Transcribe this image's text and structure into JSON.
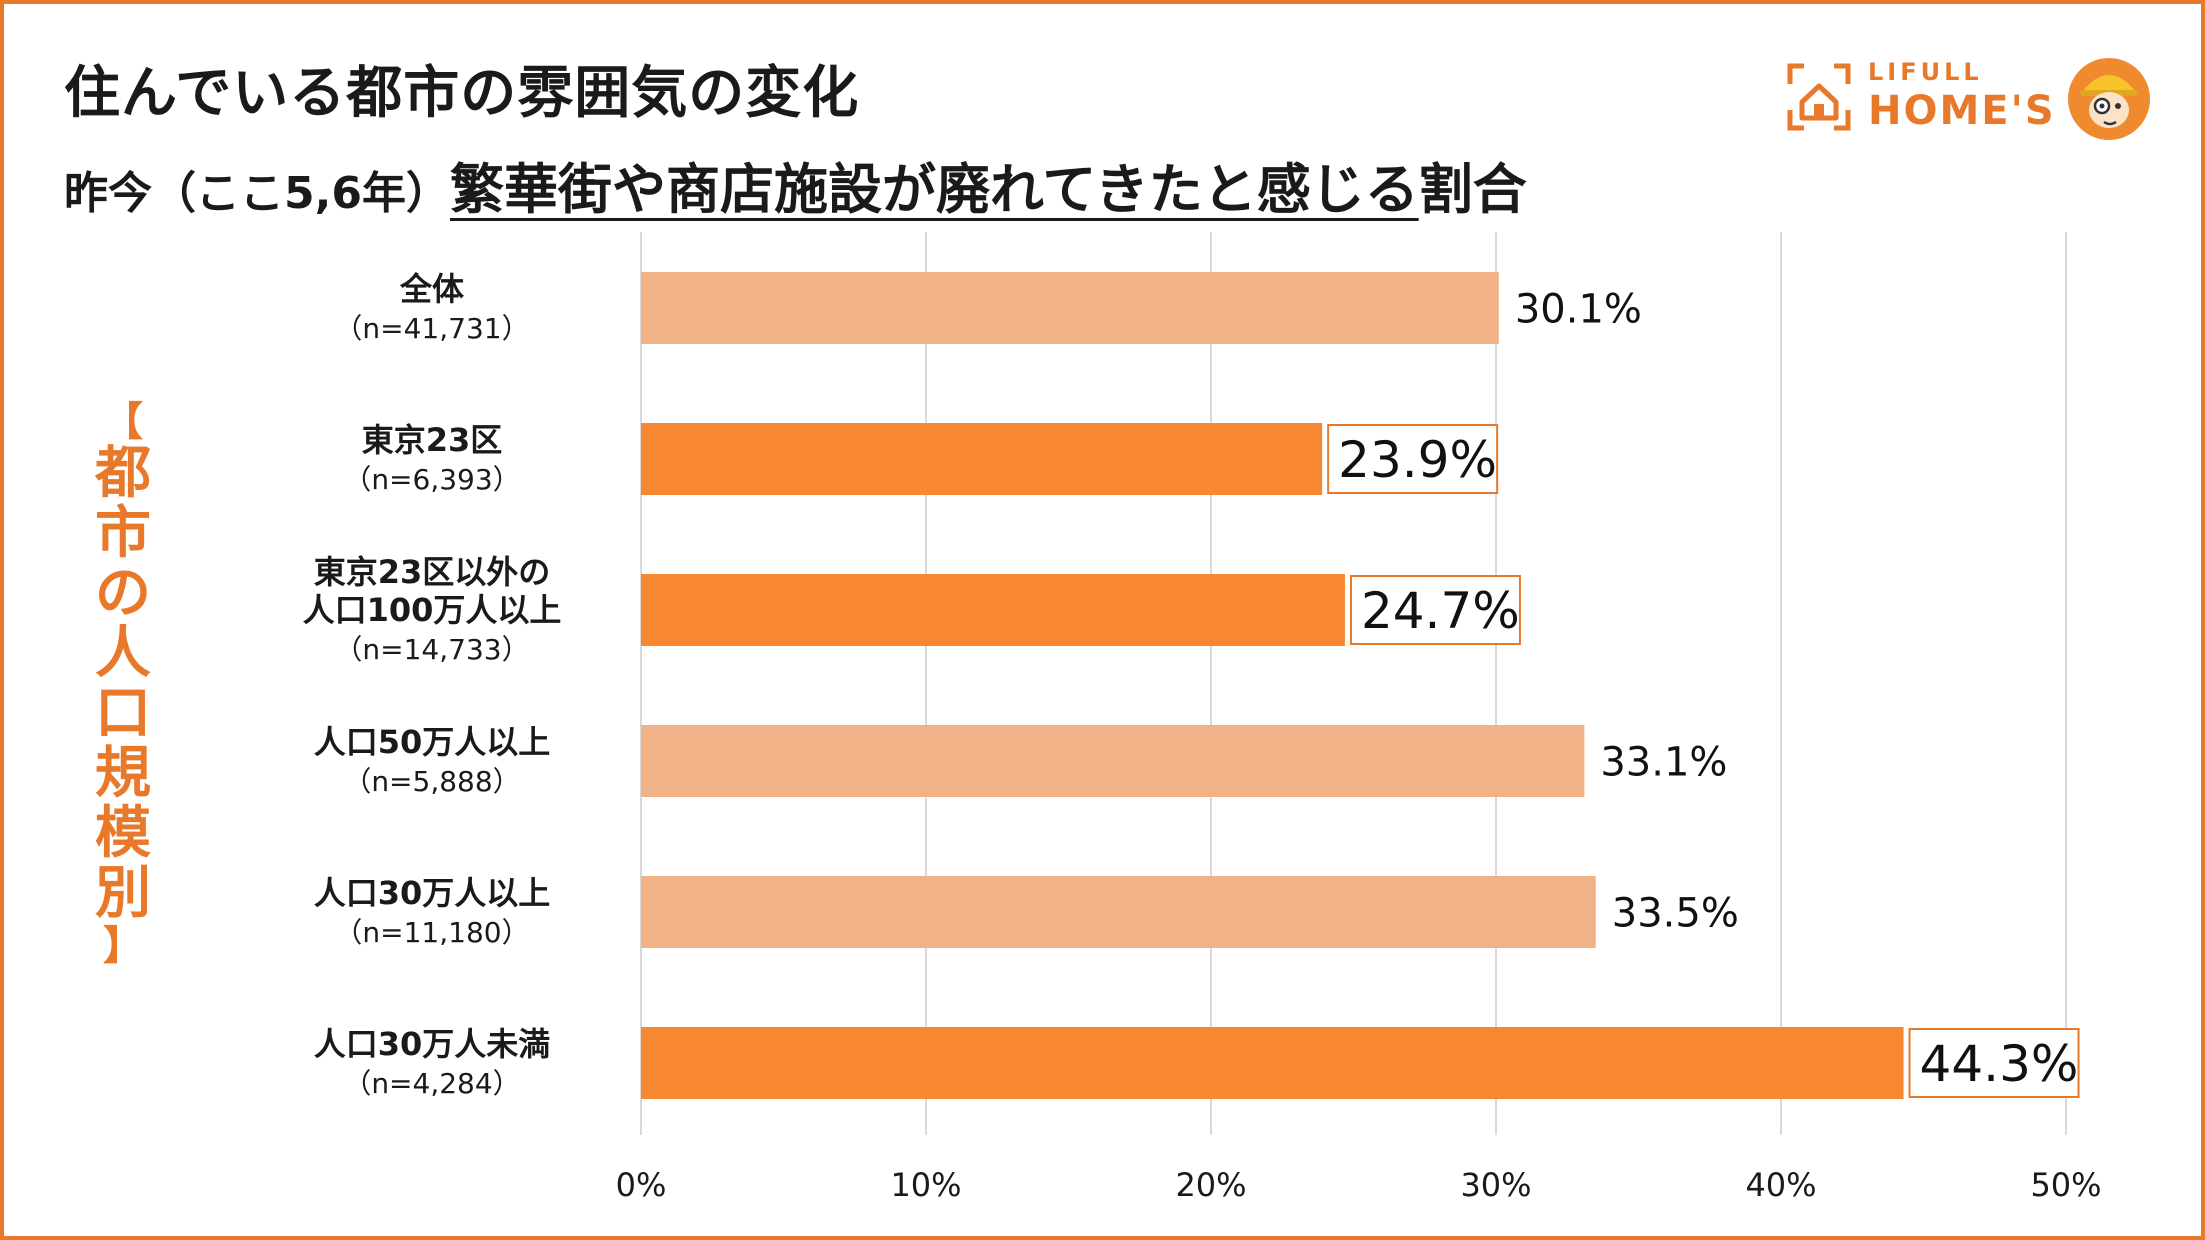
{
  "header": {
    "title": "住んでいる都市の雰囲気の変化",
    "subtitle_prefix": "昨今（ここ5,6年）",
    "subtitle_underlined": "繁華街や商店施設が廃れてきたと感じる",
    "subtitle_suffix": "割合"
  },
  "logo": {
    "brand_top": "LIFULL",
    "brand_main": "HOME'S",
    "icon": "house-icon"
  },
  "side_label": {
    "open_bracket": "【",
    "chars": [
      "都",
      "市",
      "の",
      "人",
      "口",
      "規",
      "模",
      "別"
    ],
    "close_bracket": "】"
  },
  "colors": {
    "accent": "#E8782A",
    "bar_highlight": "#F78730",
    "bar_normal": "#F2B287",
    "grid": "#D9D9D9"
  },
  "chart_data": {
    "type": "bar",
    "orientation": "horizontal",
    "categories": [
      [
        "全体",
        "（n=41,731）"
      ],
      [
        "東京23区",
        "（n=6,393）"
      ],
      [
        "東京23区以外の",
        "人口100万人以上",
        "（n=14,733）"
      ],
      [
        "人口50万人以上",
        "（n=5,888）"
      ],
      [
        "人口30万人以上",
        "（n=11,180）"
      ],
      [
        "人口30万人未満",
        "（n=4,284）"
      ]
    ],
    "values": [
      30.1,
      23.9,
      24.7,
      33.1,
      33.5,
      44.3
    ],
    "value_labels": [
      "30.1%",
      "23.9%",
      "24.7%",
      "33.1%",
      "33.5%",
      "44.3%"
    ],
    "highlighted": [
      false,
      true,
      true,
      false,
      false,
      true
    ],
    "xlim": [
      0,
      50
    ],
    "xticks": [
      "0%",
      "10%",
      "20%",
      "30%",
      "40%",
      "50%"
    ],
    "grid": true
  }
}
